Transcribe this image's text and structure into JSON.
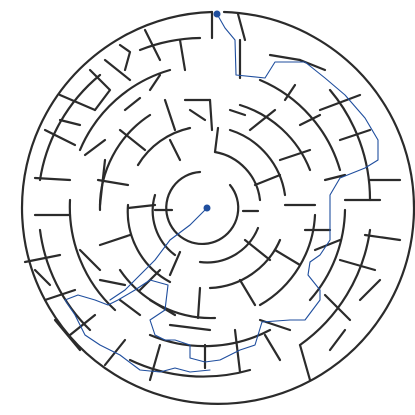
{
  "maze": {
    "type": "circular-maze",
    "wall_color": "#2b2b2b",
    "solution_color": "#1f4e9e",
    "marker_color": "#1f4e9e",
    "markers": [
      "start-marker",
      "end-marker"
    ]
  }
}
